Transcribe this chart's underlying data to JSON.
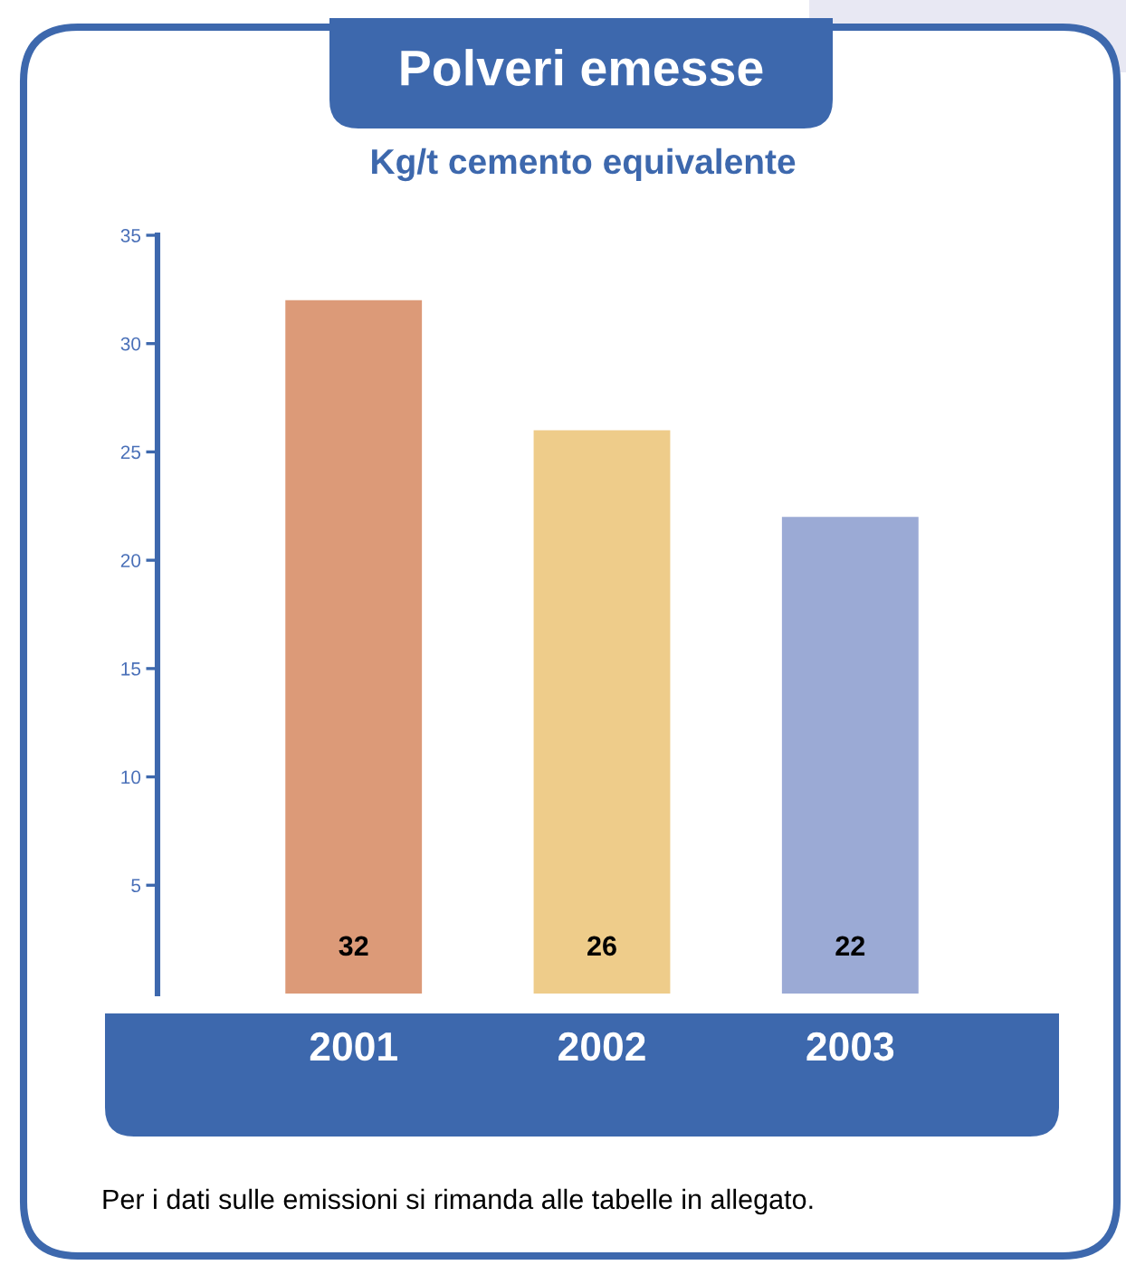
{
  "chart_data": {
    "type": "bar",
    "title": "Polveri emesse",
    "subtitle": "Kg/t cemento equivalente",
    "categories": [
      "2001",
      "2002",
      "2003"
    ],
    "values": [
      32,
      26,
      22
    ],
    "colors": [
      "#dc9a78",
      "#eecc8a",
      "#9baad5"
    ],
    "ylim": [
      0,
      35
    ],
    "yticks": [
      5,
      10,
      15,
      20,
      25,
      30,
      35
    ],
    "data_labels": true,
    "annotations": [
      "Per i dati sulle emissioni si rimanda alle tabelle in allegato."
    ]
  }
}
